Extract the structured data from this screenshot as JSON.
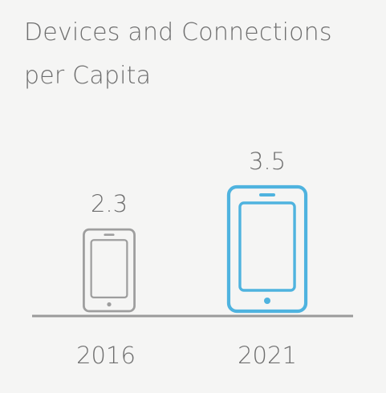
{
  "title_line1": "Devices and Connections",
  "title_line2": "per Capita",
  "chart_data": {
    "type": "bar",
    "title": "Devices and Connections per Capita",
    "categories": [
      "2016",
      "2021"
    ],
    "values": [
      2.3,
      3.5
    ],
    "value_labels": [
      "2.3",
      "3.5"
    ],
    "xlabel": "",
    "ylabel": "",
    "ylim": [
      0,
      3.5
    ],
    "grid": false,
    "mark": "smartphone-icon",
    "colors": {
      "2016": "#9e9e9e",
      "2021": "#4fb3df",
      "baseline": "#9a9a9a"
    }
  }
}
